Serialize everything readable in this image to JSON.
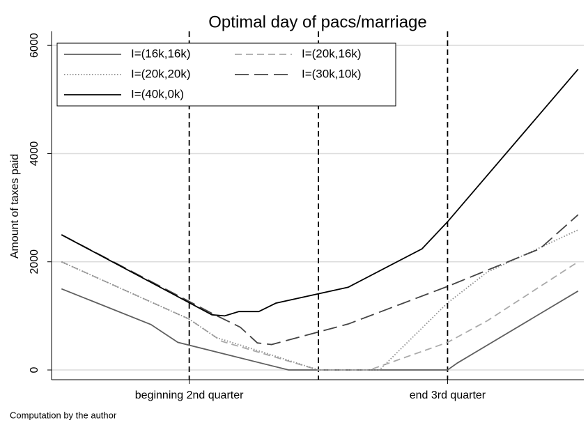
{
  "chart_data": {
    "type": "line",
    "title": "Optimal day of pacs/marriage",
    "ylabel": "Amount of taxes paid",
    "note": "Computation by the author",
    "xlim": [
      -6,
      369
    ],
    "ylim": [
      -180,
      6260
    ],
    "xticks": [
      {
        "value": 91,
        "label": "beginning 2nd quarter"
      },
      {
        "value": 273,
        "label": "end 3rd quarter"
      }
    ],
    "yticks": [
      0,
      2000,
      4000,
      6000
    ],
    "xlines": [
      91,
      182,
      273
    ],
    "grid": true,
    "legend": "top-left",
    "series": [
      {
        "name": "I=(16k,16k)",
        "color": "#5f5f5f",
        "dash": "solid",
        "x": [
          1,
          64,
          83,
          161,
          273,
          280,
          365
        ],
        "values": [
          1500,
          840,
          510,
          0,
          0,
          130,
          1460
        ]
      },
      {
        "name": "I=(20k,16k)",
        "color": "#aaaaaa",
        "dash": "dashed",
        "x": [
          1,
          91,
          114,
          182,
          218,
          273,
          301,
          365
        ],
        "values": [
          2000,
          940,
          530,
          0,
          0,
          510,
          910,
          2000
        ]
      },
      {
        "name": "I=(20k,20k)",
        "color": "#8c8c8c",
        "dash": "dotted",
        "x": [
          1,
          91,
          110,
          150,
          182,
          225,
          273,
          301,
          365
        ],
        "values": [
          2000,
          940,
          600,
          270,
          0,
          0,
          1240,
          1810,
          2590
        ]
      },
      {
        "name": "I=(30k,10k)",
        "color": "#444444",
        "dash": "longdash",
        "x": [
          1,
          109,
          127,
          139,
          149,
          203,
          273,
          338,
          365
        ],
        "values": [
          2500,
          1020,
          790,
          500,
          470,
          850,
          1545,
          2240,
          2870
        ]
      },
      {
        "name": "I=(40k,0k)",
        "color": "#000000",
        "dash": "solid",
        "x": [
          1,
          107,
          116,
          126,
          140,
          152,
          203,
          255,
          273,
          365
        ],
        "values": [
          2500,
          1020,
          1000,
          1080,
          1080,
          1235,
          1530,
          2240,
          2740,
          5560
        ]
      }
    ]
  }
}
